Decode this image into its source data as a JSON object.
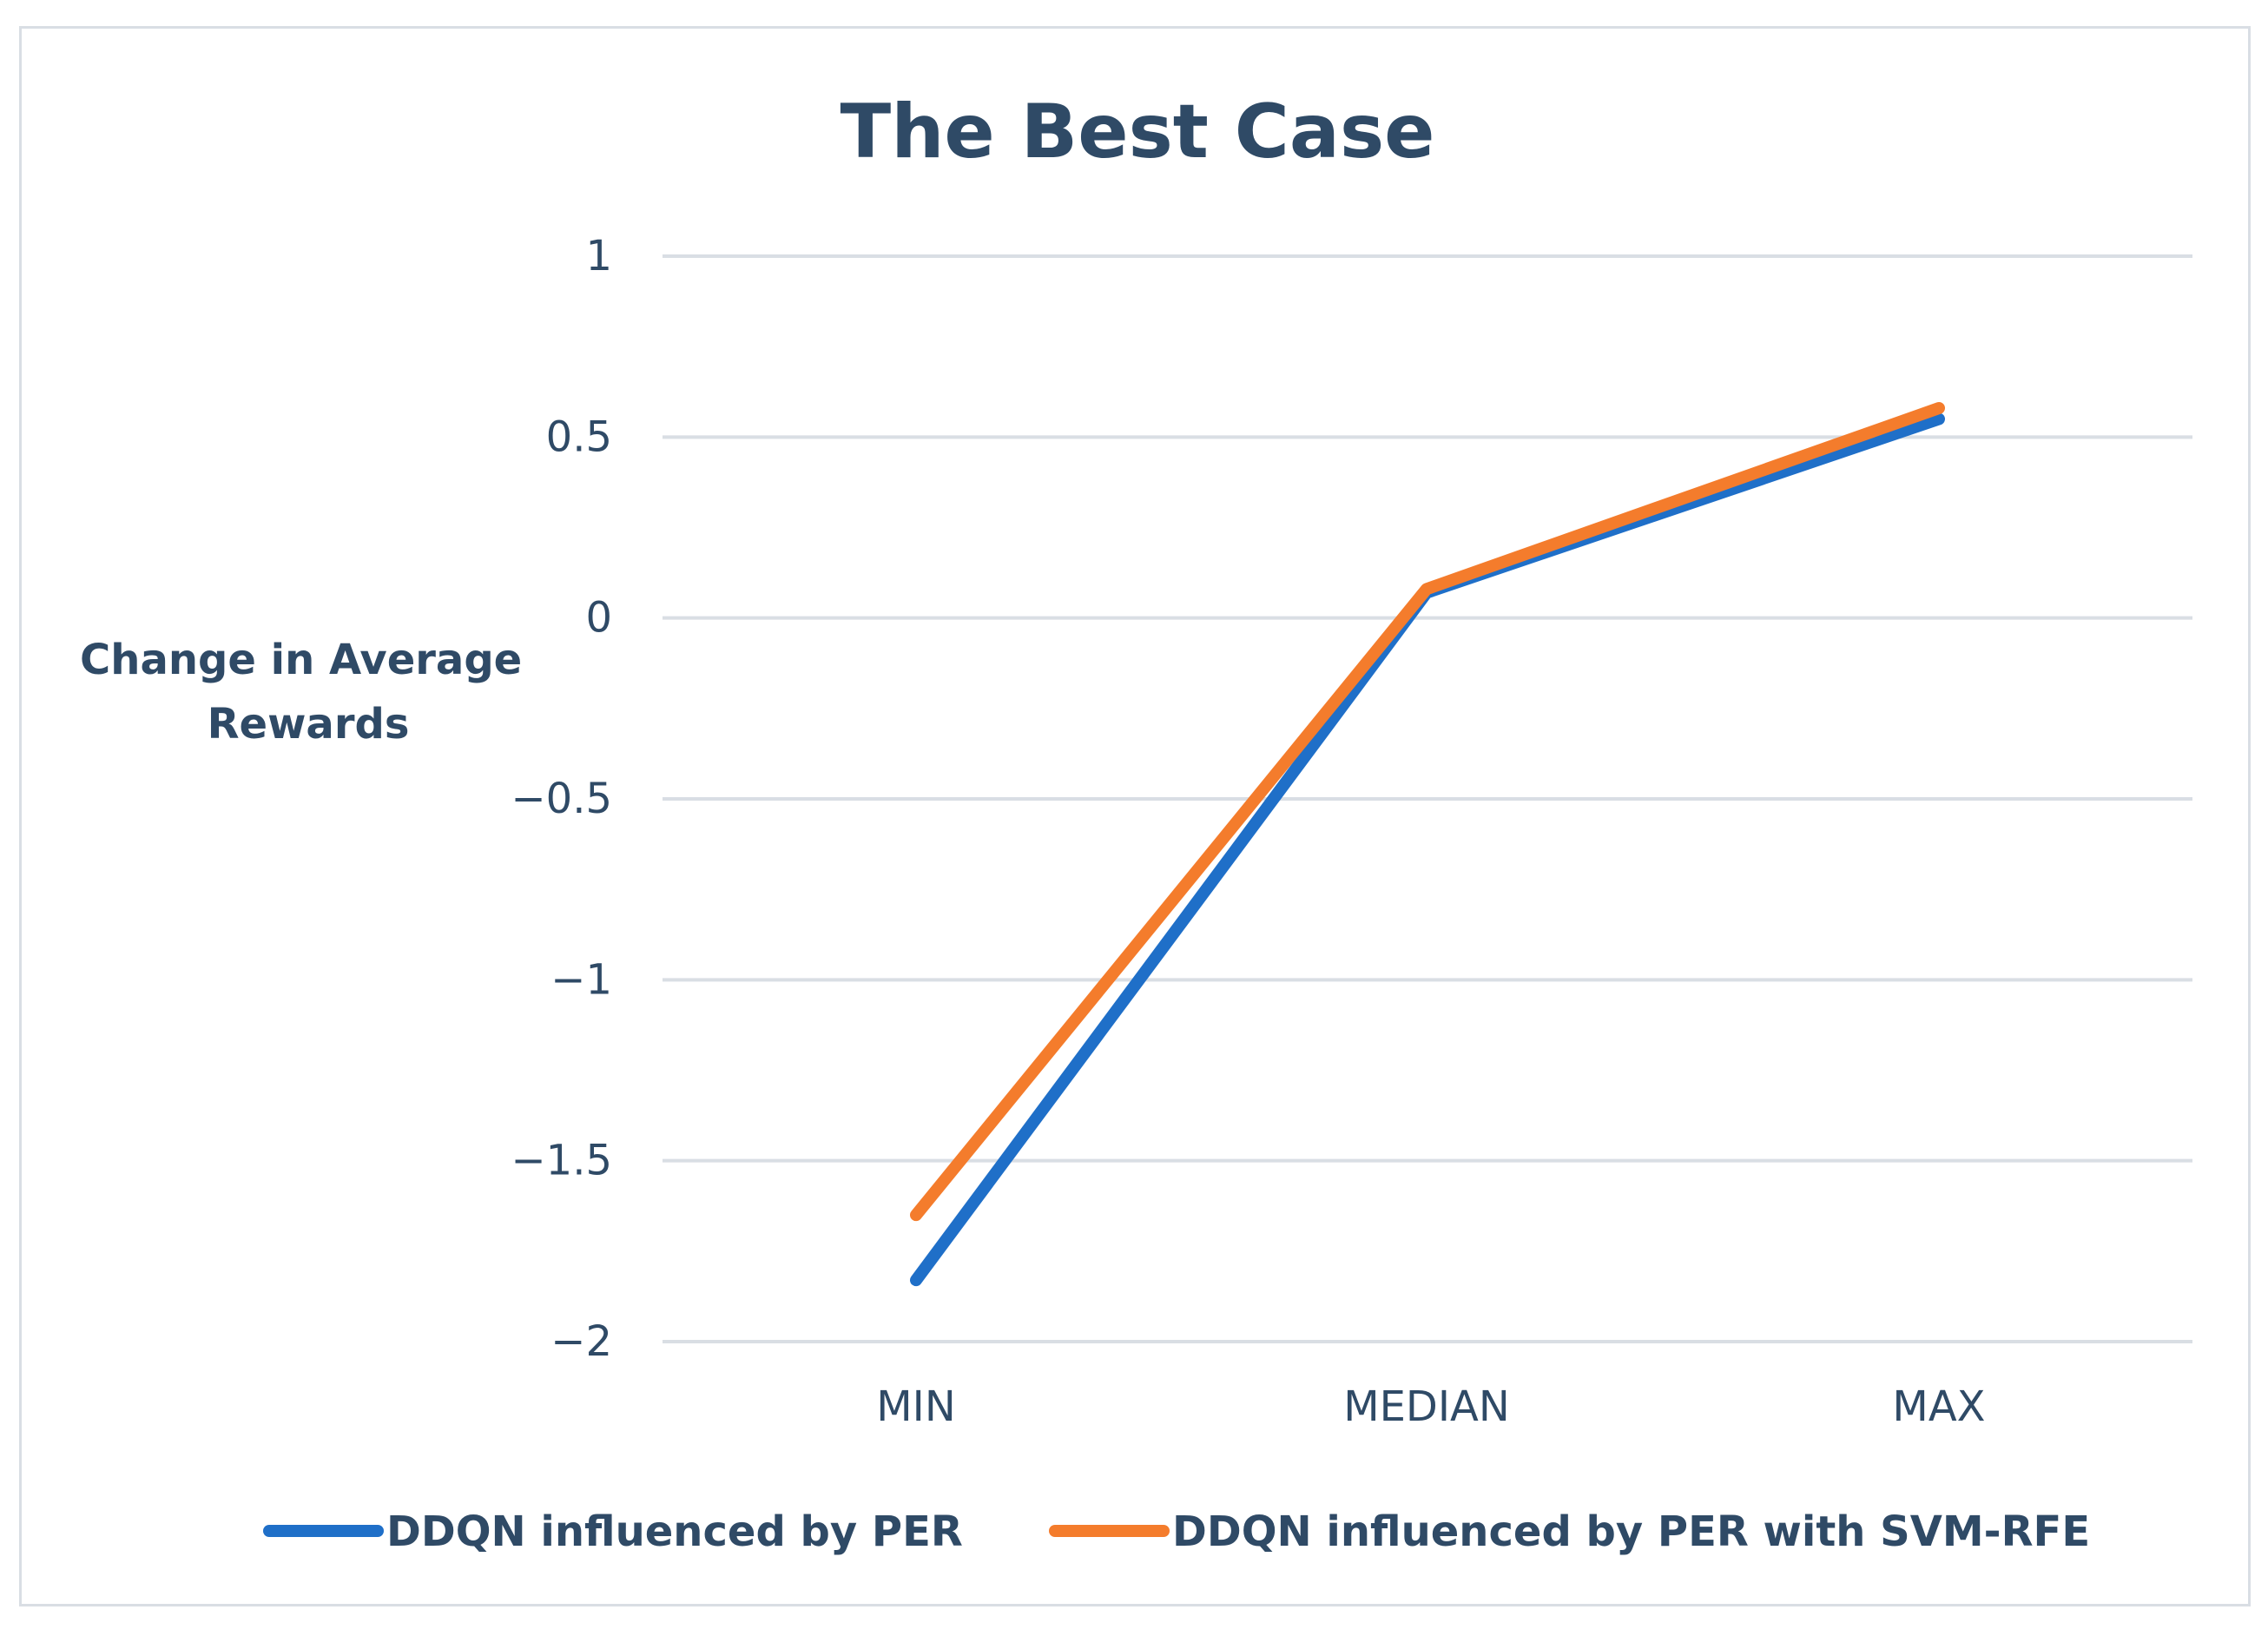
{
  "chart_data": {
    "type": "line",
    "title": "The Best Case",
    "ylabel_lines": [
      "Change in Average",
      "Rewards"
    ],
    "xlabel": "",
    "categories": [
      "MIN",
      "MEDIAN",
      "MAX"
    ],
    "ylim": [
      -2,
      1
    ],
    "yticks": [
      1,
      0.5,
      0,
      -0.5,
      -1,
      -1.5,
      -2
    ],
    "ytick_labels": [
      "1",
      "0.5",
      "0",
      "−0.5",
      "−1",
      "−1.5",
      "−2"
    ],
    "grid": true,
    "legend_position": "bottom",
    "series": [
      {
        "name": "DDQN influenced by PER",
        "color": "#1f6fc8",
        "values": [
          -1.83,
          0.07,
          0.55
        ]
      },
      {
        "name": "DDQN influenced by PER with SVM-RFE",
        "color": "#f47c2c",
        "values": [
          -1.65,
          0.08,
          0.58
        ]
      }
    ]
  }
}
